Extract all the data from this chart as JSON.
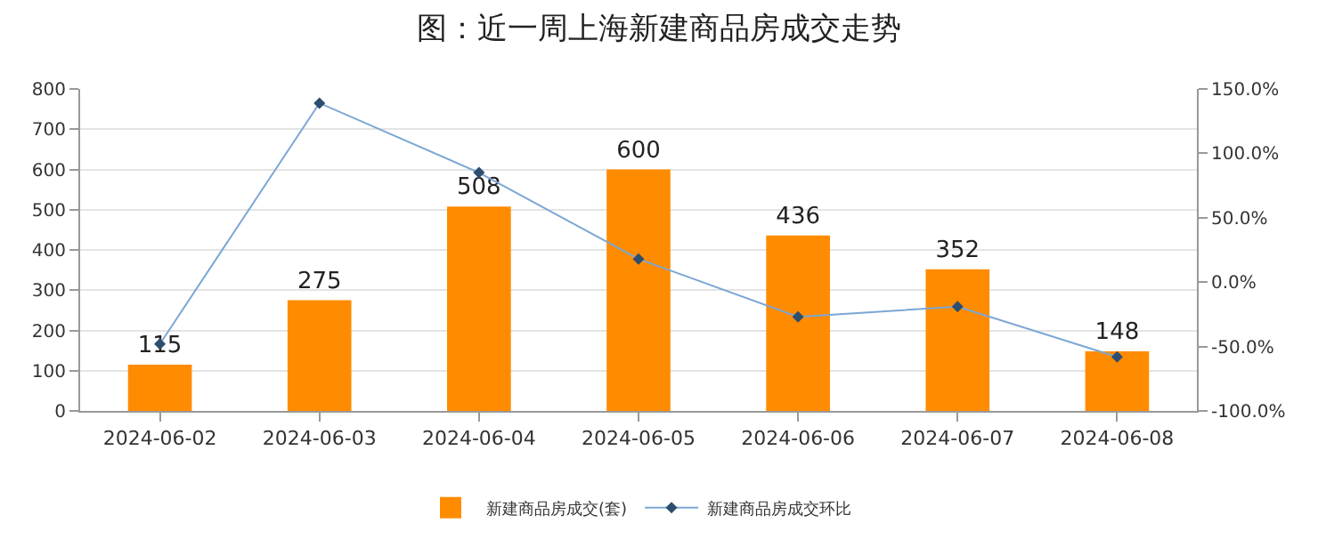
{
  "chart_data": {
    "type": "bar",
    "title": "图：近一周上海新建商品房成交走势",
    "categories": [
      "2024-06-02",
      "2024-06-03",
      "2024-06-04",
      "2024-06-05",
      "2024-06-06",
      "2024-06-07",
      "2024-06-08"
    ],
    "series": [
      {
        "name": "新建商品房成交(套)",
        "color": "#ff8c00",
        "values": [
          115,
          275,
          508,
          600,
          436,
          352,
          148
        ],
        "data_labels": true
      },
      {
        "name": "新建商品房成交环比",
        "type": "line",
        "axis": "y2",
        "color": "#7ba7d4",
        "marker": "diamond",
        "values": [
          -48,
          139,
          85,
          18,
          -27,
          -19,
          -58
        ]
      }
    ],
    "ylim": [
      0,
      800
    ],
    "yticks": [
      0,
      100,
      200,
      300,
      400,
      500,
      600,
      700,
      800
    ],
    "y2lim": [
      -100,
      150
    ],
    "y2ticks": [
      {
        "value": -100,
        "label": "-100.0%"
      },
      {
        "value": -50,
        "label": "-50.0%"
      },
      {
        "value": 0,
        "label": "0.0%"
      },
      {
        "value": 50,
        "label": "50.0%"
      },
      {
        "value": 100,
        "label": "100.0%"
      },
      {
        "value": 150,
        "label": "150.0%"
      }
    ],
    "grid": "y",
    "legend": "bottom"
  }
}
